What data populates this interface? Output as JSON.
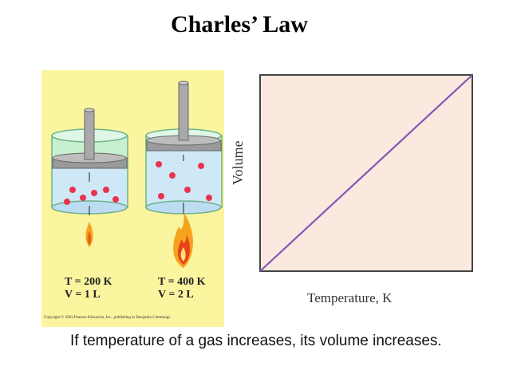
{
  "title": "Charles’ Law",
  "caption": "If temperature of a gas increases, its volume increases.",
  "figure": {
    "left": {
      "t_label": "T = 200 K",
      "v_label": "V = 1 L"
    },
    "right": {
      "t_label": "T = 400 K",
      "v_label": "V = 2 L"
    },
    "copyright": "Copyright © 2003 Pearson Education, Inc., publishing as Benjamin Cummings"
  },
  "graph": {
    "ylabel": "Volume",
    "xlabel": "Temperature, K"
  },
  "colors": {
    "panel_bg": "#fbf59f",
    "graph_bg": "#fbe9df",
    "line": "#7f58b5",
    "molecule": "#e8344d",
    "gas": "#cfe8f7",
    "flame": "#f6a21d"
  }
}
